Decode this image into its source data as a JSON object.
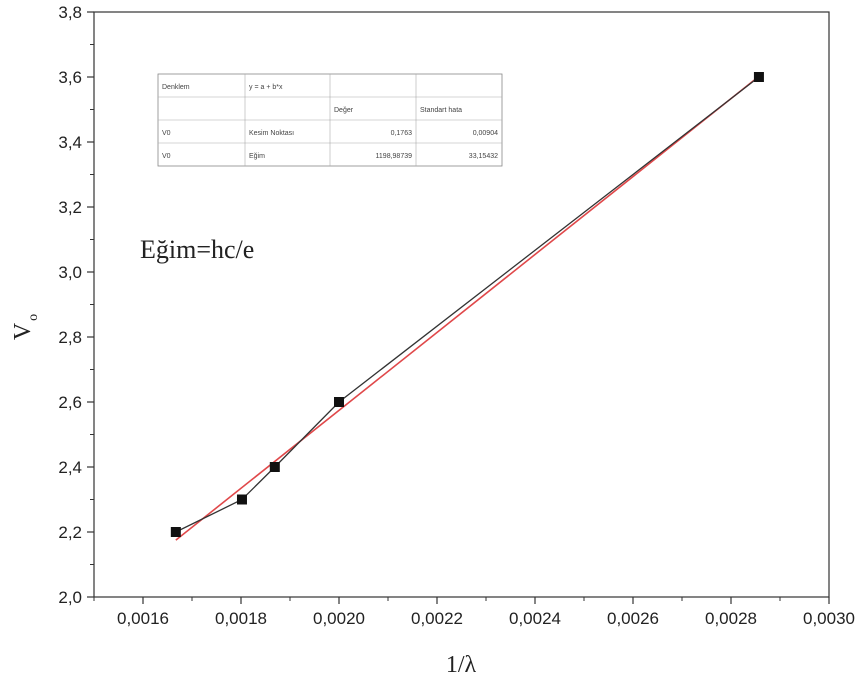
{
  "chart_data": {
    "type": "scatter",
    "xlabel": "1/λ",
    "ylabel": "V",
    "ylabel_sub": "o",
    "xlim": [
      0.0015,
      0.003
    ],
    "ylim": [
      2.0,
      3.8
    ],
    "grid": false,
    "x_ticks": [
      0.0016,
      0.0018,
      0.002,
      0.0022,
      0.0024,
      0.0026,
      0.0028,
      0.003
    ],
    "x_tick_labels": [
      "0,0016",
      "0,0018",
      "0,0020",
      "0,0022",
      "0,0024",
      "0,0026",
      "0,0028",
      "0,0030"
    ],
    "y_ticks": [
      2.0,
      2.2,
      2.4,
      2.6,
      2.8,
      3.0,
      3.2,
      3.4,
      3.6,
      3.8
    ],
    "y_tick_labels": [
      "2,0",
      "2,2",
      "2,4",
      "2,6",
      "2,8",
      "3,0",
      "3,2",
      "3,4",
      "3,6",
      "3,8"
    ],
    "series": [
      {
        "x": [
          0.001667,
          0.001802,
          0.001869,
          0.002,
          0.002857
        ],
        "y": [
          2.2,
          2.3,
          2.4,
          2.6,
          3.6
        ],
        "marker": "square",
        "line_color": "#333333"
      }
    ],
    "fit": {
      "slope": 1198.98739,
      "intercept": 0.1763,
      "color": "#e0484a"
    },
    "annotation": "Eğim=hc/e",
    "fit_table": {
      "rows": [
        [
          "Denklem",
          "y = a + b*x",
          "",
          ""
        ],
        [
          "",
          "",
          "Değer",
          "Standart hata"
        ],
        [
          "V0",
          "Kesim Noktası",
          "0,1763",
          "0,00904"
        ],
        [
          "V0",
          "Eğim",
          "1198,98739",
          "33,15432"
        ]
      ]
    }
  }
}
